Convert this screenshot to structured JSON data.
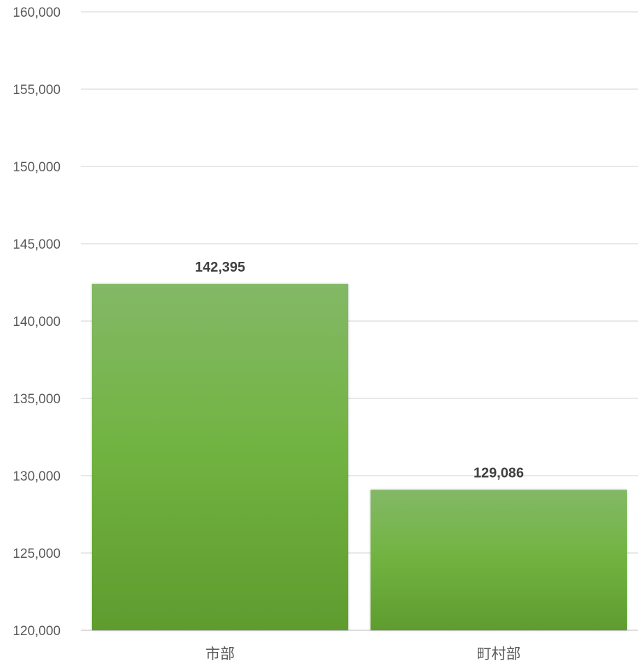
{
  "chart_data": {
    "type": "bar",
    "title": "",
    "xlabel": "",
    "ylabel": "",
    "categories": [
      "市部",
      "町村部"
    ],
    "values": [
      142395,
      129086
    ],
    "data_labels": [
      "142,395",
      "129,086"
    ],
    "ylim": [
      120000,
      160000
    ],
    "yticks": [
      120000,
      125000,
      130000,
      135000,
      140000,
      145000,
      150000,
      155000,
      160000
    ],
    "ytick_labels": [
      "120,000",
      "125,000",
      "130,000",
      "135,000",
      "140,000",
      "145,000",
      "150,000",
      "155,000",
      "160,000"
    ],
    "grid": true,
    "legend": "none",
    "colors": {
      "bar_top": "#83b866",
      "bar_mid": "#72b443",
      "bar_bottom": "#5e9c2e",
      "grid": "#d9d9d9",
      "axis_text": "#595959",
      "data_label": "#404040"
    }
  }
}
